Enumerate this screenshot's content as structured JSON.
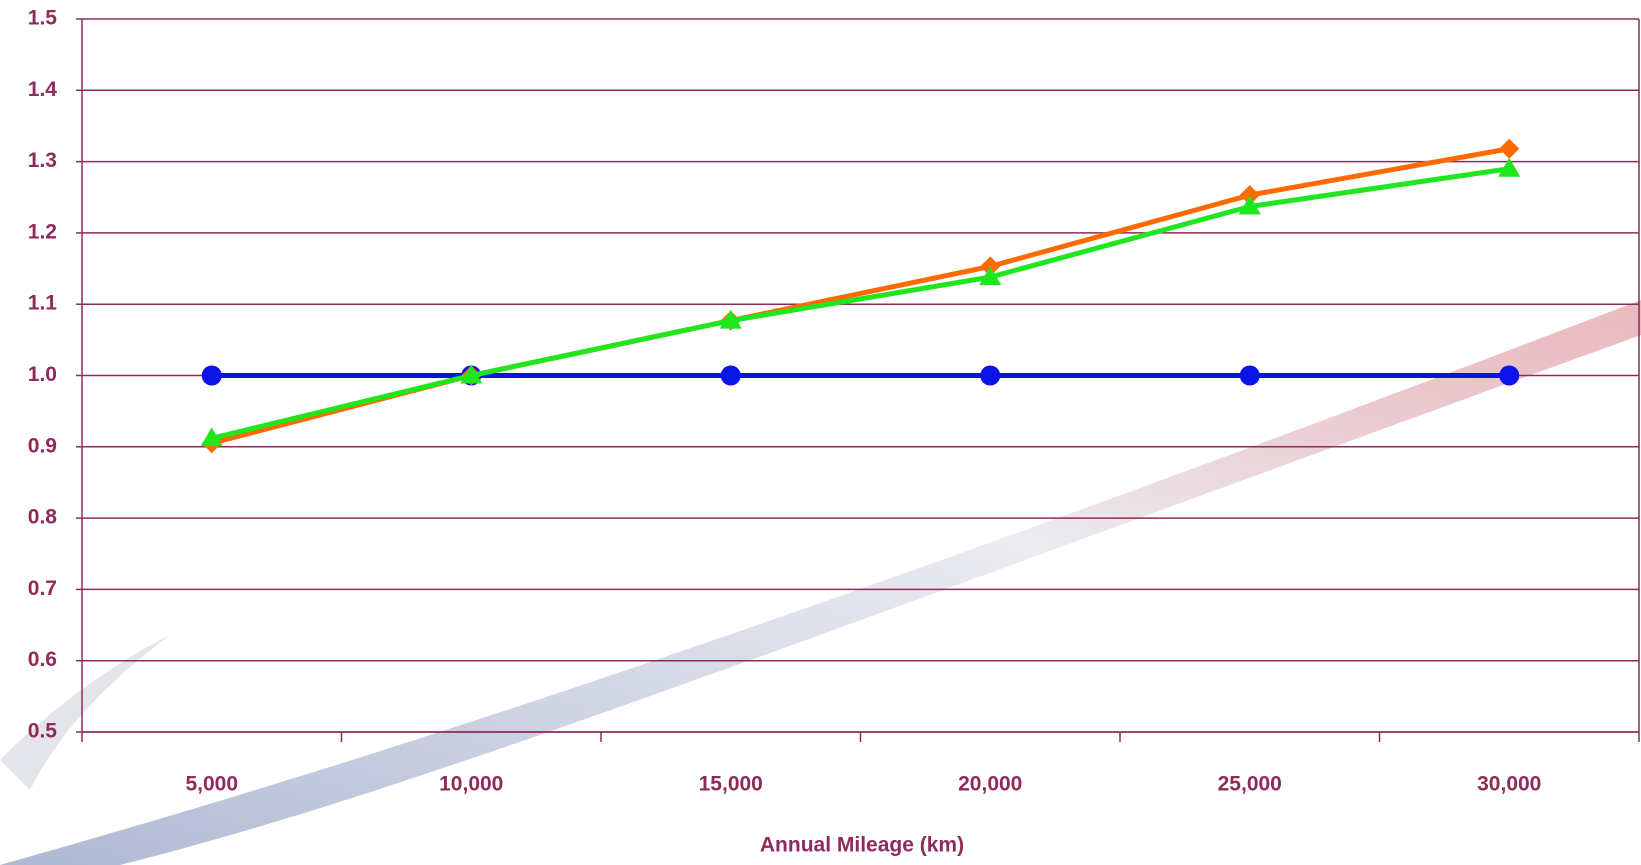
{
  "chart_data": {
    "type": "line",
    "x_label": "Annual Mileage (km)",
    "categories": [
      "5,000",
      "10,000",
      "15,000",
      "20,000",
      "25,000",
      "30,000"
    ],
    "series": [
      {
        "color": "#0a14e6",
        "marker": "circle",
        "values": [
          1.0,
          1.0,
          1.0,
          1.0,
          1.0,
          1.0
        ]
      },
      {
        "color": "#ff6a00",
        "marker": "diamond",
        "values": [
          0.905,
          1.0,
          1.077,
          1.153,
          1.253,
          1.318
        ]
      },
      {
        "color": "#1fe61f",
        "marker": "triangle",
        "values": [
          0.912,
          1.0,
          1.077,
          1.138,
          1.237,
          1.29
        ]
      }
    ],
    "ylim": [
      0.5,
      1.5
    ],
    "yticks": [
      0.5,
      0.6,
      0.7,
      0.8,
      0.9,
      {
        "value": 1,
        "label": "1.0"
      },
      1.1,
      1.2,
      1.3,
      1.4,
      1.5
    ],
    "grid": true,
    "axis_color": "#8e2b5a"
  }
}
